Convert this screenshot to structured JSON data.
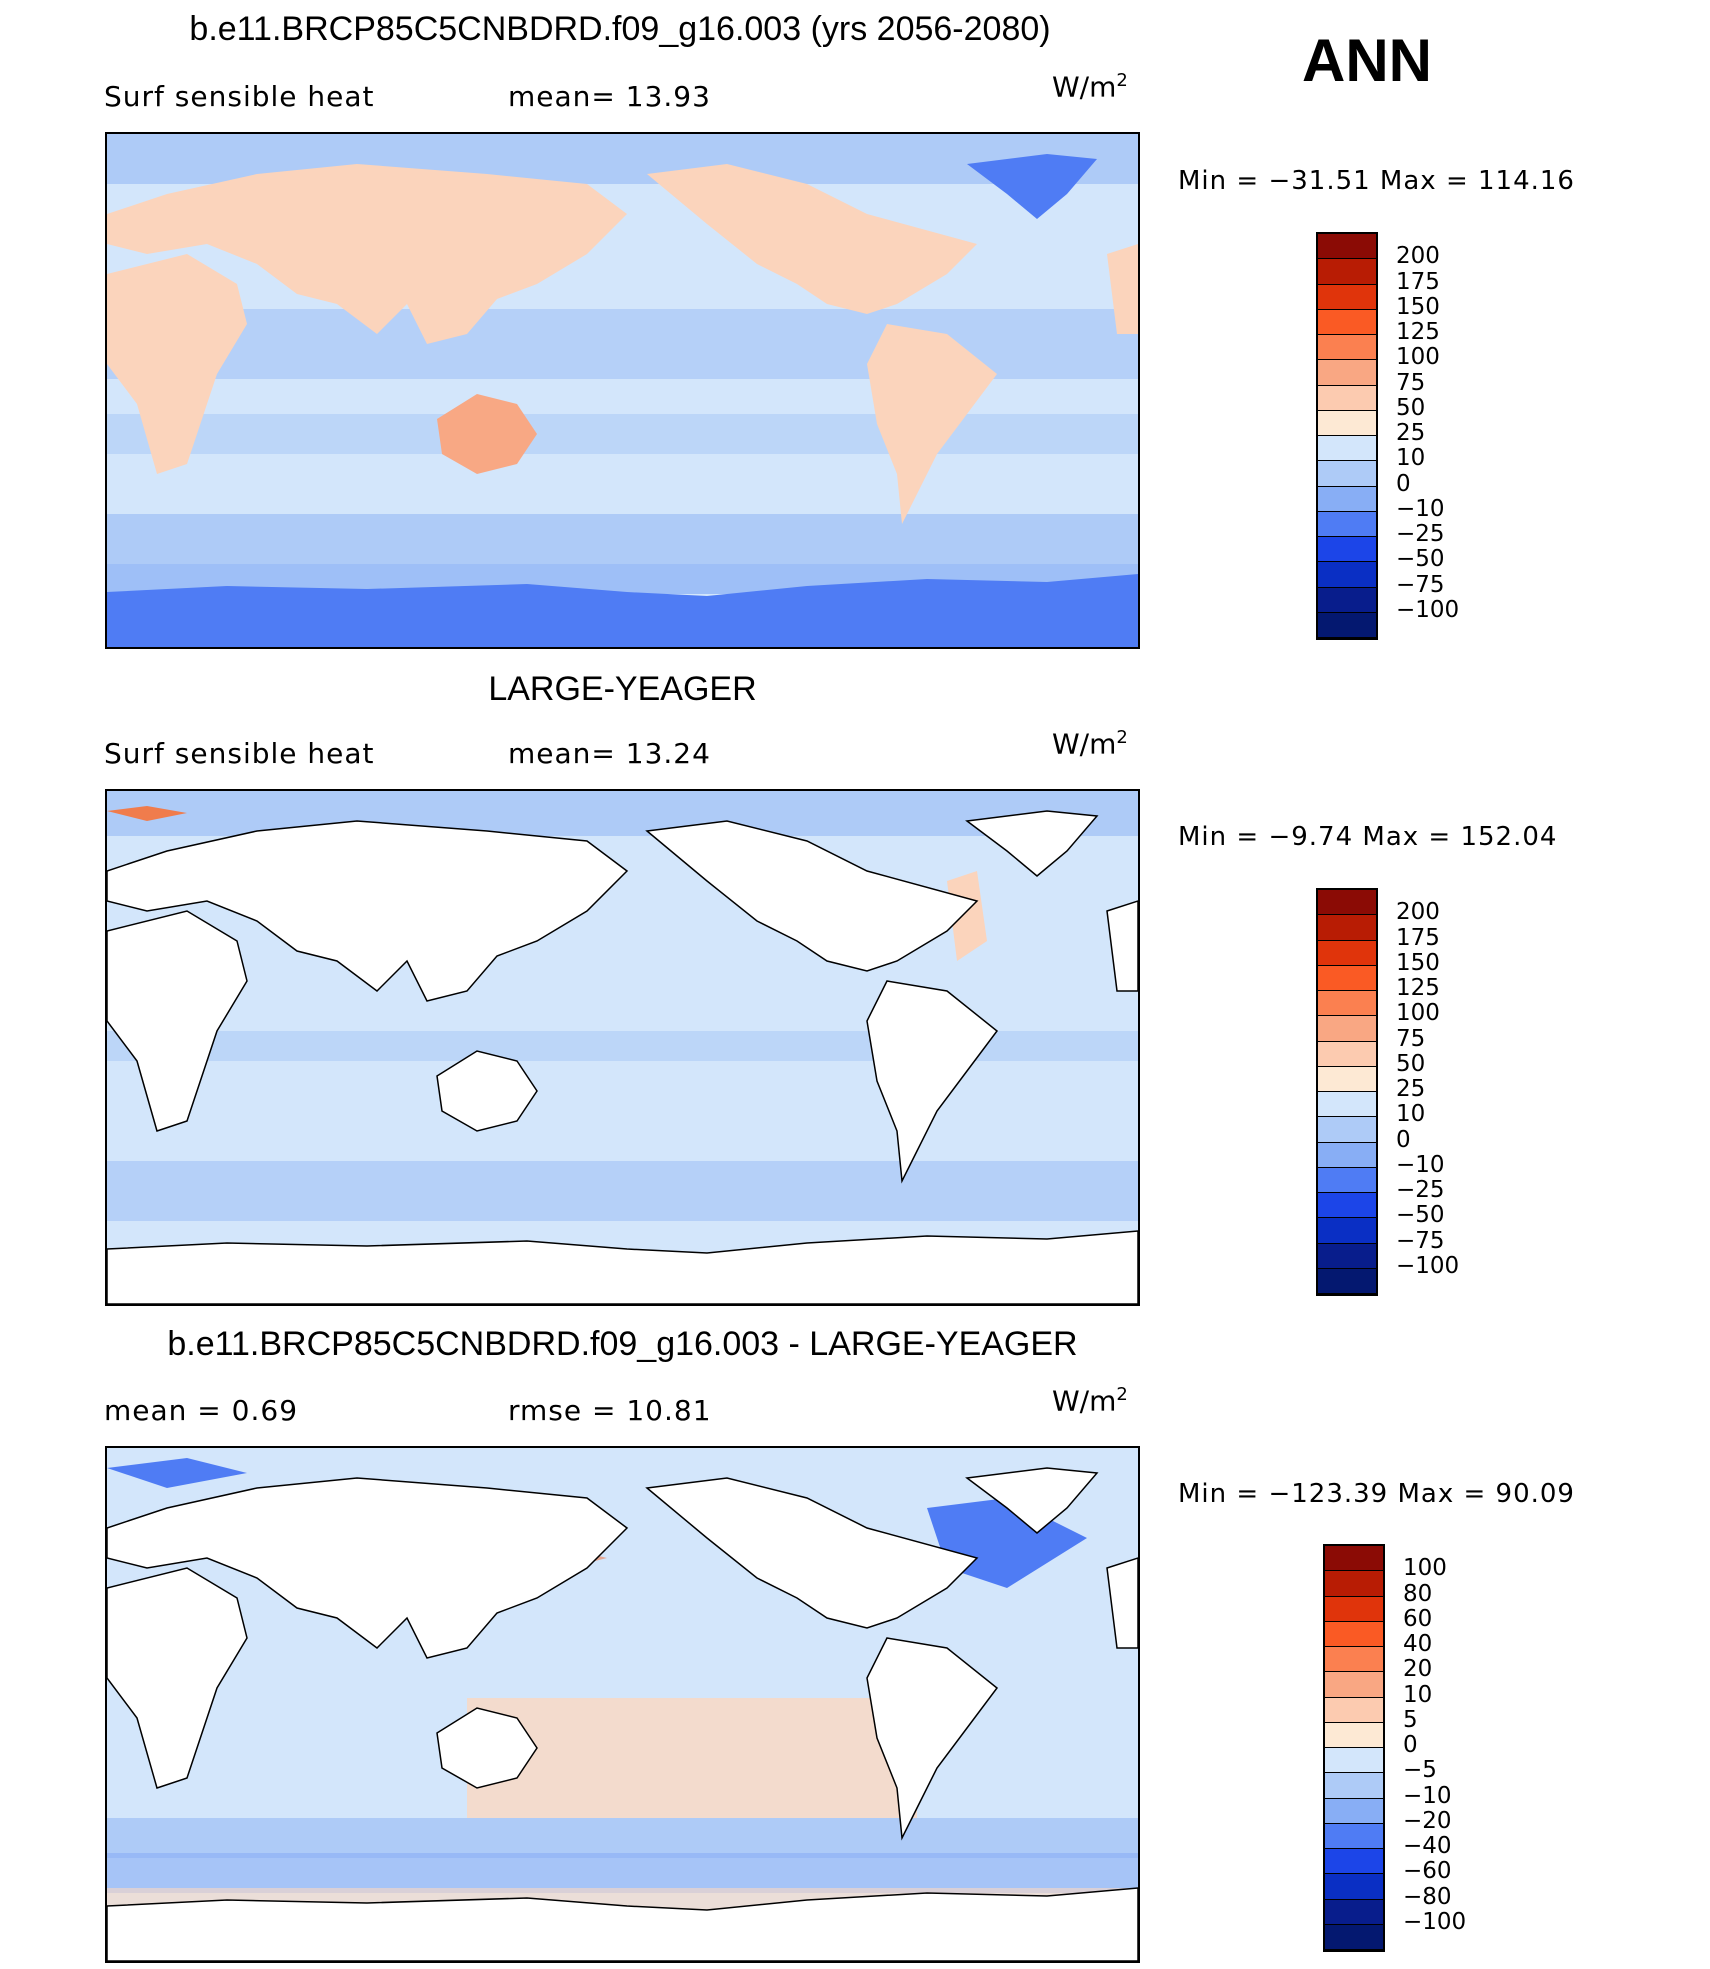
{
  "season": "ANN",
  "colors": {
    "land_white": "#ffffff",
    "ocean_light": "#d3e6fb",
    "ocean_mid": "#aecbf7",
    "ocean_blue": "#88aef5",
    "ice_blue": "#4f7cf4",
    "land_warm": "#fbd4bc",
    "australia": "#f8a884",
    "diff_pos": "#fbd8c2",
    "diff_strong": "#f07c4c"
  },
  "panels": [
    {
      "title": "b.e11.BRCP85C5CNBDRD.f09_g16.003 (yrs 2056-2080)",
      "left_label": "Surf  sensible  heat",
      "stat1": "mean=   13.93",
      "stat2": "",
      "units": "W/m",
      "units_sup": "2",
      "minmax": "Min  =  −31.51  Max  =  114.16",
      "colorbar_labels": [
        "200",
        "175",
        "150",
        "125",
        "100",
        "75",
        "50",
        "25",
        "10",
        "0",
        "−10",
        "−25",
        "−50",
        "−75",
        "−100"
      ],
      "colorbar_colors": [
        "#8b0b05",
        "#b81c04",
        "#e0340b",
        "#fa5a24",
        "#fb8050",
        "#f9a783",
        "#fccbb0",
        "#fde9d4",
        "#d3e6fb",
        "#aecbf7",
        "#88aef5",
        "#4f7cf4",
        "#1c45e8",
        "#0a2fc4",
        "#081d8c",
        "#041870"
      ]
    },
    {
      "title": "LARGE-YEAGER",
      "left_label": "Surf  sensible  heat",
      "stat1": "mean=   13.24",
      "stat2": "",
      "units": "W/m",
      "units_sup": "2",
      "minmax": "Min  =    −9.74  Max  =  152.04",
      "colorbar_labels": [
        "200",
        "175",
        "150",
        "125",
        "100",
        "75",
        "50",
        "25",
        "10",
        "0",
        "−10",
        "−25",
        "−50",
        "−75",
        "−100"
      ],
      "colorbar_colors": [
        "#8b0b05",
        "#b81c04",
        "#e0340b",
        "#fa5a24",
        "#fb8050",
        "#f9a783",
        "#fccbb0",
        "#fde9d4",
        "#d3e6fb",
        "#aecbf7",
        "#88aef5",
        "#4f7cf4",
        "#1c45e8",
        "#0a2fc4",
        "#081d8c",
        "#041870"
      ]
    },
    {
      "title": "b.e11.BRCP85C5CNBDRD.f09_g16.003 - LARGE-YEAGER",
      "left_label": "mean  =     0.69",
      "stat1": "rmse  =     10.81",
      "stat2": "",
      "units": "W/m",
      "units_sup": "2",
      "minmax": "Min  =  −123.39  Max  =    90.09",
      "colorbar_labels": [
        "100",
        "80",
        "60",
        "40",
        "20",
        "10",
        "5",
        "0",
        "−5",
        "−10",
        "−20",
        "−40",
        "−60",
        "−80",
        "−100"
      ],
      "colorbar_colors": [
        "#8b0b05",
        "#b81c04",
        "#e0340b",
        "#fa5a24",
        "#fb8050",
        "#f9a783",
        "#fccbb0",
        "#fde9d4",
        "#d3e6fb",
        "#aecbf7",
        "#88aef5",
        "#4f7cf4",
        "#1c45e8",
        "#0a2fc4",
        "#081d8c",
        "#041870"
      ]
    }
  ],
  "chart_data": [
    {
      "type": "heatmap",
      "title": "b.e11.BRCP85C5CNBDRD.f09_g16.003 (yrs 2056-2080)",
      "variable": "Surf  sensible  heat",
      "units": "W/m2",
      "season": "ANN",
      "mean": 13.93,
      "min": -31.51,
      "max": 114.16,
      "contour_levels": [
        -100,
        -75,
        -50,
        -25,
        -10,
        0,
        10,
        25,
        50,
        75,
        100,
        125,
        150,
        175,
        200
      ]
    },
    {
      "type": "heatmap",
      "title": "LARGE-YEAGER",
      "variable": "Surf  sensible  heat",
      "units": "W/m2",
      "mean": 13.24,
      "min": -9.74,
      "max": 152.04,
      "contour_levels": [
        -100,
        -75,
        -50,
        -25,
        -10,
        0,
        10,
        25,
        50,
        75,
        100,
        125,
        150,
        175,
        200
      ]
    },
    {
      "type": "heatmap",
      "title": "b.e11.BRCP85C5CNBDRD.f09_g16.003 - LARGE-YEAGER",
      "units": "W/m2",
      "mean": 0.69,
      "rmse": 10.81,
      "min": -123.39,
      "max": 90.09,
      "contour_levels": [
        -100,
        -80,
        -60,
        -40,
        -20,
        -10,
        -5,
        0,
        5,
        10,
        20,
        40,
        60,
        80,
        100
      ]
    }
  ]
}
